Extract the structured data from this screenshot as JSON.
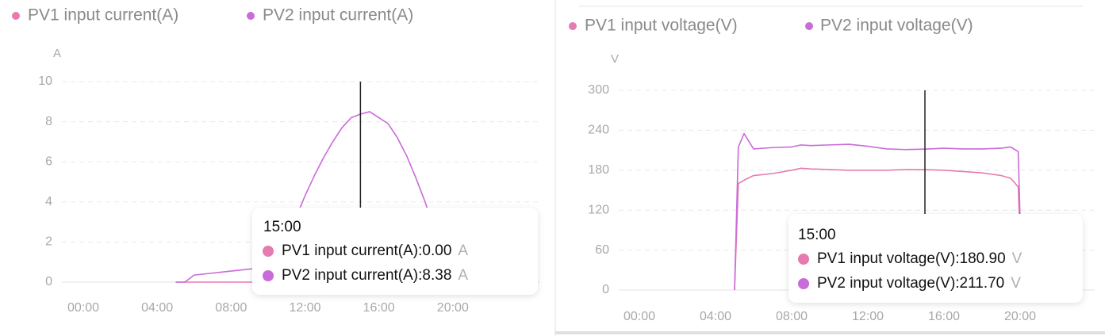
{
  "chart_data": [
    {
      "type": "line",
      "axis_unit": "A",
      "x": [
        5,
        5.5,
        6,
        6.5,
        7,
        7.5,
        8,
        8.5,
        9,
        9.5,
        10,
        10.5,
        11,
        11.5,
        12,
        12.5,
        13,
        13.5,
        14,
        14.5,
        15,
        15.5,
        16,
        16.5,
        17,
        17.5,
        18,
        18.5,
        19,
        19.5,
        20
      ],
      "series": [
        {
          "name": "PV1 input current(A)",
          "color": "#e57bb0",
          "values": [
            0,
            0,
            0,
            0,
            0,
            0,
            0,
            0,
            0,
            0,
            0,
            0,
            0,
            0,
            0,
            0,
            0,
            0,
            0,
            0,
            0,
            0,
            0,
            0,
            0,
            0,
            0,
            0,
            0,
            0,
            0
          ]
        },
        {
          "name": "PV2 input current(A)",
          "color": "#c96bd8",
          "values": [
            0,
            0,
            0.35,
            0.4,
            0.45,
            0.5,
            0.55,
            0.6,
            0.65,
            0.7,
            0.8,
            1.3,
            2.1,
            3.2,
            4.3,
            5.3,
            6.2,
            7.0,
            7.7,
            8.2,
            8.38,
            8.5,
            8.2,
            7.9,
            7.2,
            6.3,
            5.2,
            4.0,
            2.6,
            1.2,
            0
          ]
        }
      ],
      "xlim": [
        0,
        24
      ],
      "xticks": [
        {
          "value": 0,
          "label": "00:00"
        },
        {
          "value": 4,
          "label": "04:00"
        },
        {
          "value": 8,
          "label": "08:00"
        },
        {
          "value": 12,
          "label": "12:00"
        },
        {
          "value": 16,
          "label": "16:00"
        },
        {
          "value": 20,
          "label": "20:00"
        }
      ],
      "ylim": [
        0,
        10
      ],
      "yticks": [
        0,
        2,
        4,
        6,
        8,
        10
      ],
      "grid": true,
      "tooltip": {
        "x": 15,
        "title": "15:00",
        "items": [
          {
            "label": "PV1 input current(A):0.00",
            "unit": "A"
          },
          {
            "label": "PV2 input current(A):8.38",
            "unit": "A"
          }
        ]
      }
    },
    {
      "type": "line",
      "axis_unit": "V",
      "x": [
        5,
        5.2,
        5.5,
        6,
        7,
        8,
        8.5,
        9,
        10,
        11,
        12,
        13,
        14,
        15,
        16,
        17,
        18,
        19,
        19.5,
        19.9,
        20.1
      ],
      "series": [
        {
          "name": "PV1 input voltage(V)",
          "color": "#e57bb0",
          "values": [
            0,
            160,
            165,
            172,
            175,
            180,
            183,
            182,
            181,
            180,
            180,
            180,
            181,
            180.9,
            180,
            178,
            176,
            172,
            168,
            155,
            0
          ]
        },
        {
          "name": "PV2 input voltage(V)",
          "color": "#c96bd8",
          "values": [
            0,
            215,
            235,
            212,
            214,
            215,
            218,
            217,
            218,
            219,
            216,
            212,
            211,
            211.7,
            213,
            212,
            212,
            213,
            215,
            208,
            0
          ]
        }
      ],
      "xlim": [
        0,
        24
      ],
      "xticks": [
        {
          "value": 0,
          "label": "00:00"
        },
        {
          "value": 4,
          "label": "04:00"
        },
        {
          "value": 8,
          "label": "08:00"
        },
        {
          "value": 12,
          "label": "12:00"
        },
        {
          "value": 16,
          "label": "16:00"
        },
        {
          "value": 20,
          "label": "20:00"
        }
      ],
      "ylim": [
        0,
        300
      ],
      "yticks": [
        0,
        60,
        120,
        180,
        240,
        300
      ],
      "grid": true,
      "tooltip": {
        "x": 15,
        "title": "15:00",
        "items": [
          {
            "label": "PV1 input voltage(V):180.90",
            "unit": "V"
          },
          {
            "label": "PV2 input voltage(V):211.70",
            "unit": "V"
          }
        ]
      }
    }
  ]
}
